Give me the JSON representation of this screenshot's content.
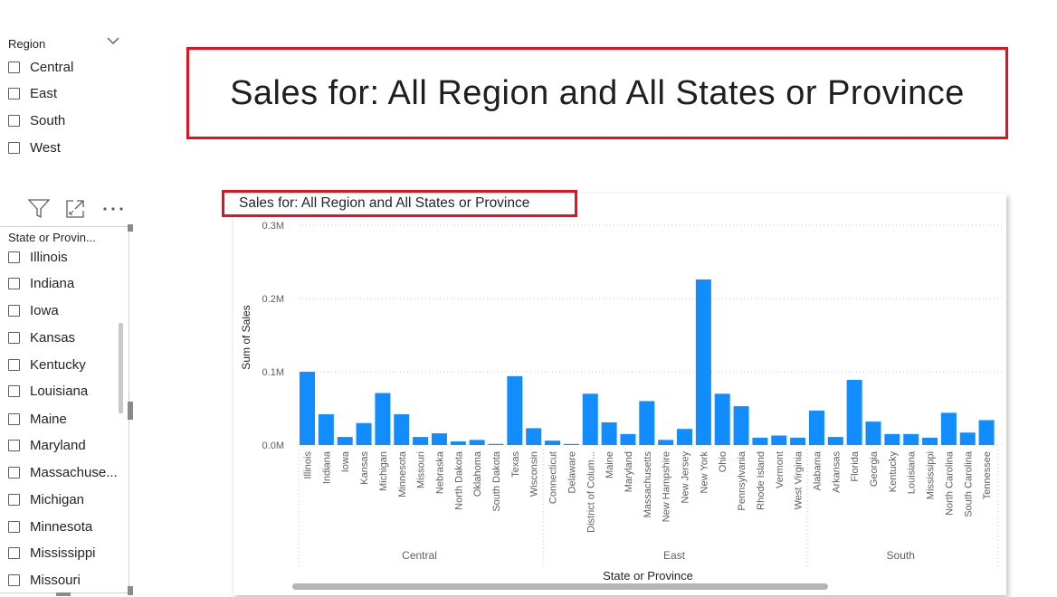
{
  "region_slicer": {
    "header": "Region",
    "items": [
      "Central",
      "East",
      "South",
      "West"
    ]
  },
  "toolbar": {
    "filter_icon": "filter-icon",
    "focus_icon": "focus-mode-icon",
    "more_icon": "more-options-icon"
  },
  "state_slicer": {
    "header": "State or Provin...",
    "items": [
      "Illinois",
      "Indiana",
      "Iowa",
      "Kansas",
      "Kentucky",
      "Louisiana",
      "Maine",
      "Maryland",
      "Massachuse...",
      "Michigan",
      "Minnesota",
      "Mississippi",
      "Missouri"
    ]
  },
  "page_title": "Sales for: All Region and All States or Province",
  "chart_title": "Sales for: All Region and All States or Province",
  "colors": {
    "bar": "#118dff",
    "highlight_border": "#e3121d"
  },
  "chart_data": {
    "type": "bar",
    "title": "Sales for: All Region and All States or Province",
    "xlabel": "State or Province",
    "ylabel": "Sum of Sales",
    "ylim": [
      0,
      300000
    ],
    "y_ticks": [
      "0.0M",
      "0.1M",
      "0.2M",
      "0.3M"
    ],
    "y_tick_values": [
      0,
      100000,
      200000,
      300000
    ],
    "grid": true,
    "groups": [
      {
        "name": "Central",
        "categories": [
          "Illinois",
          "Indiana",
          "Iowa",
          "Kansas",
          "Michigan",
          "Minnesota",
          "Missouri",
          "Nebraska",
          "North Dakota",
          "Oklahoma",
          "South Dakota",
          "Texas",
          "Wisconsin"
        ],
        "values": [
          100000,
          42000,
          11000,
          30000,
          71000,
          42000,
          11000,
          16000,
          5000,
          7000,
          1500,
          94000,
          23000
        ]
      },
      {
        "name": "East",
        "categories": [
          "Connecticut",
          "Delaware",
          "District of Colum...",
          "Maine",
          "Maryland",
          "Massachusetts",
          "New Hampshire",
          "New Jersey",
          "New York",
          "Ohio",
          "Pennsylvania",
          "Rhode Island",
          "Vermont",
          "West Virginia"
        ],
        "values": [
          6000,
          1500,
          70000,
          31000,
          15000,
          60000,
          7000,
          22000,
          226000,
          70000,
          53000,
          10000,
          13000,
          10000
        ]
      },
      {
        "name": "South",
        "categories": [
          "Alabama",
          "Arkansas",
          "Florida",
          "Georgia",
          "Kentucky",
          "Louisiana",
          "Mississippi",
          "North Carolina",
          "South Carolina",
          "Tennessee"
        ],
        "values": [
          47000,
          11000,
          89000,
          32000,
          15000,
          15000,
          10000,
          44000,
          17000,
          34000
        ]
      }
    ]
  }
}
